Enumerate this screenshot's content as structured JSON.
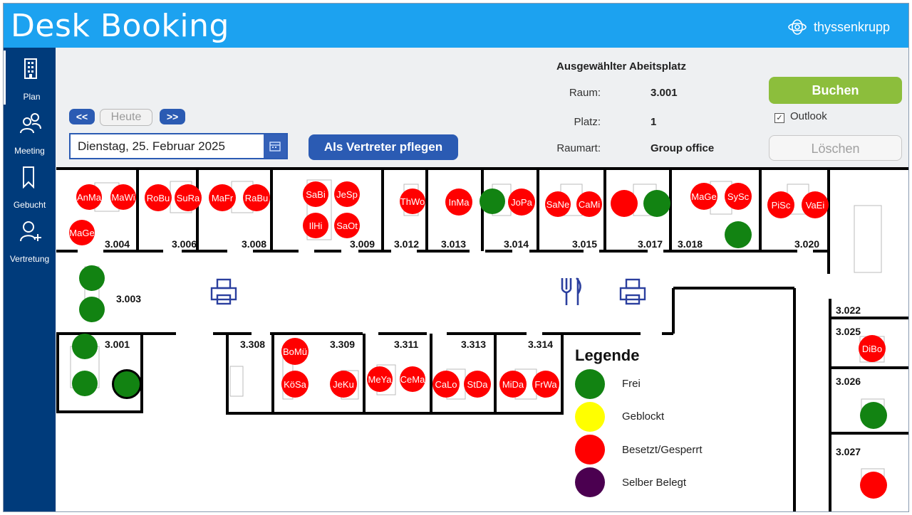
{
  "app": {
    "title": "Desk Booking",
    "brand": "thyssenkrupp"
  },
  "sidebar": {
    "items": [
      {
        "label": "Plan",
        "icon": "building-icon"
      },
      {
        "label": "Meeting",
        "icon": "people-icon"
      },
      {
        "label": "Gebucht",
        "icon": "bookmark-icon"
      },
      {
        "label": "Vertretung",
        "icon": "person-add-icon"
      }
    ]
  },
  "controls": {
    "prev": "<<",
    "today": "Heute",
    "next": ">>",
    "date": "Dienstag, 25. Februar 2025",
    "vertreter": "Als Vertreter pflegen"
  },
  "selected": {
    "title": "Ausgewählter Abeitsplatz",
    "raum_label": "Raum:",
    "raum_value": "3.001",
    "platz_label": "Platz:",
    "platz_value": "1",
    "raumart_label": "Raumart:",
    "raumart_value": "Group office"
  },
  "actions": {
    "book": "Buchen",
    "outlook": "Outlook",
    "outlook_checked": "✓",
    "delete": "Löschen"
  },
  "rooms": [
    "3.004",
    "3.006",
    "3.008",
    "3.009",
    "3.012",
    "3.013",
    "3.014",
    "3.015",
    "3.017",
    "3.018",
    "3.020",
    "3.003",
    "3.001",
    "3.308",
    "3.309",
    "3.311",
    "3.313",
    "3.314",
    "3.022",
    "3.025",
    "3.026",
    "3.027"
  ],
  "seats": [
    {
      "text": "AnMa",
      "status": "red"
    },
    {
      "text": "MaWi",
      "status": "red"
    },
    {
      "text": "MaGe",
      "status": "red"
    },
    {
      "text": "RoBu",
      "status": "red"
    },
    {
      "text": "SuRa",
      "status": "red"
    },
    {
      "text": "MaFr",
      "status": "red"
    },
    {
      "text": "RaBu",
      "status": "red"
    },
    {
      "text": "SaBi",
      "status": "red"
    },
    {
      "text": "JeSp",
      "status": "red"
    },
    {
      "text": "IlHi",
      "status": "red"
    },
    {
      "text": "SaOt",
      "status": "red"
    },
    {
      "text": "ThWo",
      "status": "red"
    },
    {
      "text": "InMa",
      "status": "red"
    },
    {
      "text": "",
      "status": "green"
    },
    {
      "text": "JoPa",
      "status": "red"
    },
    {
      "text": "SaNe",
      "status": "red"
    },
    {
      "text": "CaMi",
      "status": "red"
    },
    {
      "text": "",
      "status": "red"
    },
    {
      "text": "",
      "status": "green"
    },
    {
      "text": "MaGe",
      "status": "red"
    },
    {
      "text": "SySc",
      "status": "red"
    },
    {
      "text": "",
      "status": "green"
    },
    {
      "text": "PiSc",
      "status": "red"
    },
    {
      "text": "VaEi",
      "status": "red"
    },
    {
      "text": "",
      "status": "green"
    },
    {
      "text": "",
      "status": "green"
    },
    {
      "text": "",
      "status": "green"
    },
    {
      "text": "",
      "status": "green"
    },
    {
      "text": "",
      "status": "green"
    },
    {
      "text": "BoMü",
      "status": "red"
    },
    {
      "text": "KöSa",
      "status": "red"
    },
    {
      "text": "JeKu",
      "status": "red"
    },
    {
      "text": "MeYa",
      "status": "red"
    },
    {
      "text": "CeMa",
      "status": "red"
    },
    {
      "text": "CaLo",
      "status": "red"
    },
    {
      "text": "StDa",
      "status": "red"
    },
    {
      "text": "MiDa",
      "status": "red"
    },
    {
      "text": "FrWa",
      "status": "red"
    },
    {
      "text": "DiBo",
      "status": "red"
    },
    {
      "text": "",
      "status": "green"
    },
    {
      "text": "",
      "status": "red"
    }
  ],
  "legend": {
    "title": "Legende",
    "items": [
      {
        "label": "Frei",
        "color": "#128312"
      },
      {
        "label": "Geblockt",
        "color": "#ffff00"
      },
      {
        "label": "Besetzt/Gesperrt",
        "color": "#ff0000"
      },
      {
        "label": "Selber Belegt",
        "color": "#4b0050"
      }
    ]
  }
}
